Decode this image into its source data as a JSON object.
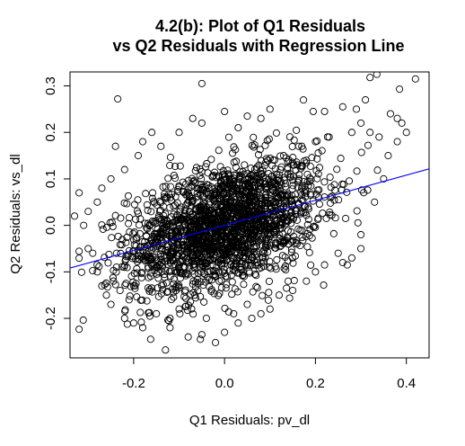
{
  "chart_data": {
    "type": "scatter",
    "title_line1": "4.2(b): Plot of Q1 Residuals",
    "title_line2": "vs Q2 Residuals with Regression Line",
    "xlabel": "Q1 Residuals: pv_dl",
    "ylabel": "Q2 Residuals: vs_dl",
    "xlim": [
      -0.34,
      0.45
    ],
    "ylim": [
      -0.285,
      0.33
    ],
    "x_ticks": [
      -0.2,
      0.0,
      0.2,
      0.4
    ],
    "x_tick_labels": [
      "-0.2",
      "0.0",
      "0.2",
      "0.4"
    ],
    "y_ticks": [
      -0.2,
      -0.1,
      0.0,
      0.1,
      0.2,
      0.3
    ],
    "y_tick_labels": [
      "-0.2",
      "-0.1",
      "0.0",
      "0.1",
      "0.2",
      "0.3"
    ],
    "grid": false,
    "legend": "none",
    "point_style": "open-circle",
    "point_color": "#000000",
    "regression_line": {
      "intercept": 0.0,
      "slope": 0.27,
      "color": "#0000ff"
    },
    "points": [
      [
        0.42,
        0.315
      ],
      [
        0.385,
        0.293
      ],
      [
        0.32,
        0.318
      ],
      [
        0.335,
        0.325
      ],
      [
        -0.05,
        0.305
      ],
      [
        -0.235,
        0.272
      ],
      [
        -0.13,
        -0.268
      ],
      [
        -0.02,
        -0.252
      ],
      [
        0.39,
        0.22
      ],
      [
        0.365,
        0.24
      ],
      [
        0.38,
        0.23
      ],
      [
        0.31,
        0.27
      ],
      [
        0.29,
        0.25
      ],
      [
        0.26,
        0.255
      ],
      [
        0.22,
        0.245
      ],
      [
        0.195,
        0.245
      ],
      [
        0.4,
        0.2
      ],
      [
        -0.32,
        0.07
      ],
      [
        -0.33,
        0.02
      ],
      [
        -0.31,
        0.0
      ],
      [
        -0.3,
        -0.05
      ],
      [
        -0.29,
        -0.06
      ],
      [
        -0.28,
        -0.1
      ],
      [
        -0.27,
        -0.13
      ],
      [
        -0.26,
        -0.15
      ],
      [
        -0.25,
        -0.17
      ],
      [
        -0.22,
        -0.2
      ],
      [
        -0.2,
        -0.21
      ],
      [
        -0.18,
        -0.22
      ],
      [
        -0.12,
        -0.22
      ],
      [
        -0.08,
        -0.24
      ],
      [
        -0.05,
        -0.235
      ],
      [
        0.0,
        -0.23
      ],
      [
        0.03,
        -0.21
      ],
      [
        0.06,
        -0.2
      ],
      [
        0.08,
        -0.19
      ],
      [
        0.1,
        -0.18
      ],
      [
        0.15,
        -0.14
      ],
      [
        0.2,
        -0.1
      ],
      [
        0.22,
        -0.085
      ],
      [
        0.26,
        -0.08
      ],
      [
        0.27,
        -0.085
      ],
      [
        0.28,
        -0.07
      ],
      [
        0.25,
        -0.06
      ],
      [
        0.3,
        -0.05
      ],
      [
        0.3,
        -0.02
      ],
      [
        0.33,
        0.05
      ],
      [
        0.35,
        0.1
      ],
      [
        0.36,
        0.15
      ],
      [
        0.38,
        0.18
      ],
      [
        0.3,
        0.22
      ],
      [
        0.28,
        0.2
      ],
      [
        0.32,
        0.2
      ],
      [
        0.34,
        0.19
      ],
      [
        -0.18,
        0.18
      ],
      [
        -0.19,
        0.15
      ],
      [
        -0.16,
        0.2
      ],
      [
        -0.14,
        0.17
      ],
      [
        -0.1,
        0.2
      ],
      [
        -0.07,
        0.23
      ],
      [
        -0.05,
        0.22
      ],
      [
        0.0,
        0.245
      ],
      [
        0.05,
        0.235
      ],
      [
        0.1,
        0.25
      ],
      [
        0.08,
        0.23
      ],
      [
        0.03,
        0.21
      ],
      [
        -0.24,
        0.17
      ],
      [
        -0.22,
        0.12
      ],
      [
        -0.25,
        0.1
      ],
      [
        -0.27,
        0.08
      ],
      [
        -0.28,
        0.05
      ],
      [
        -0.3,
        0.03
      ],
      [
        0.17,
        0.17
      ],
      [
        0.2,
        0.18
      ],
      [
        0.23,
        0.19
      ],
      [
        0.13,
        0.15
      ],
      [
        0.16,
        0.13
      ],
      [
        0.18,
        0.14
      ],
      [
        -0.12,
        -0.2
      ],
      [
        -0.15,
        -0.19
      ],
      [
        -0.1,
        -0.18
      ],
      [
        -0.04,
        -0.2
      ],
      [
        0.02,
        -0.19
      ],
      [
        0.05,
        -0.17
      ],
      [
        0.12,
        -0.15
      ],
      [
        0.14,
        -0.12
      ],
      [
        0.18,
        -0.12
      ],
      [
        -0.23,
        -0.14
      ],
      [
        -0.21,
        -0.16
      ],
      [
        -0.2,
        -0.13
      ]
    ],
    "cluster": {
      "count": 2100,
      "x_mean": 0.0,
      "x_sd": 0.105,
      "y_noise_sd": 0.065
    }
  }
}
